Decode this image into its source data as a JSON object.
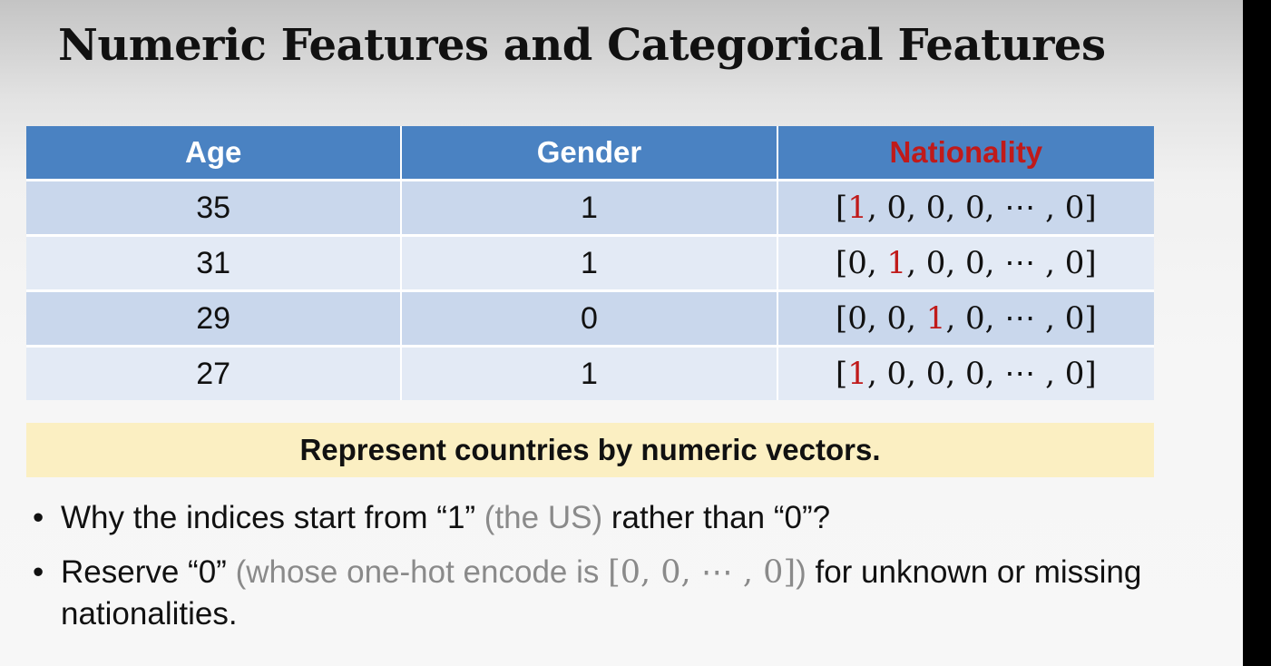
{
  "slide": {
    "title": "Numeric Features and Categorical Features",
    "table": {
      "headers": [
        "Age",
        "Gender",
        "Nationality"
      ],
      "rows": [
        {
          "age": "35",
          "gender": "1",
          "vec_pre": "[",
          "vec_hl": "1",
          "vec_post": ", 0, 0, 0, ⋯ , 0]"
        },
        {
          "age": "31",
          "gender": "1",
          "vec_pre": "[0, ",
          "vec_hl": "1",
          "vec_post": ", 0, 0, ⋯ , 0]"
        },
        {
          "age": "29",
          "gender": "0",
          "vec_pre": "[0, 0, ",
          "vec_hl": "1",
          "vec_post": ", 0, ⋯ , 0]"
        },
        {
          "age": "27",
          "gender": "1",
          "vec_pre": "[",
          "vec_hl": "1",
          "vec_post": ", 0, 0, 0, ⋯ , 0]"
        }
      ]
    },
    "callout": "Represent countries by numeric vectors.",
    "bullets": [
      {
        "bullet": "•",
        "p1": "Why the indices start from “1” ",
        "gray": "(the US)",
        "p2": " rather than “0”?"
      },
      {
        "bullet": "•",
        "p1": "Reserve “0” ",
        "gray_a": "(whose one-hot encode is ",
        "math": "[0, 0, ⋯ , 0]",
        "gray_b": ")",
        "p2": " for unknown or missing nationalities."
      }
    ],
    "colors": {
      "header_bg": "#4a82c2",
      "row_dark": "#c9d7ec",
      "row_light": "#e3eaf5",
      "highlight": "#c01a1a",
      "callout_bg": "#fbefc2"
    }
  }
}
